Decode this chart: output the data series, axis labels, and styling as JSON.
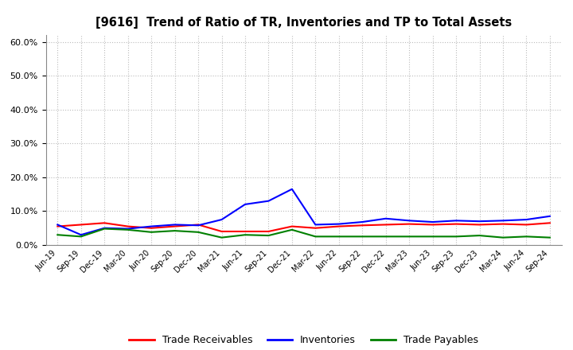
{
  "title": "[9616]  Trend of Ratio of TR, Inventories and TP to Total Assets",
  "labels": [
    "Jun-19",
    "Sep-19",
    "Dec-19",
    "Mar-20",
    "Jun-20",
    "Sep-20",
    "Dec-20",
    "Mar-21",
    "Jun-21",
    "Sep-21",
    "Dec-21",
    "Mar-22",
    "Jun-22",
    "Sep-22",
    "Dec-22",
    "Mar-23",
    "Jun-23",
    "Sep-23",
    "Dec-23",
    "Mar-24",
    "Jun-24",
    "Sep-24"
  ],
  "trade_receivables": [
    0.055,
    0.06,
    0.065,
    0.055,
    0.05,
    0.055,
    0.06,
    0.04,
    0.04,
    0.04,
    0.055,
    0.05,
    0.055,
    0.058,
    0.06,
    0.062,
    0.06,
    0.062,
    0.06,
    0.062,
    0.06,
    0.065
  ],
  "inventories": [
    0.06,
    0.03,
    0.05,
    0.048,
    0.055,
    0.06,
    0.058,
    0.075,
    0.12,
    0.13,
    0.165,
    0.06,
    0.062,
    0.068,
    0.078,
    0.072,
    0.068,
    0.072,
    0.07,
    0.072,
    0.075,
    0.085
  ],
  "trade_payables": [
    0.03,
    0.025,
    0.048,
    0.045,
    0.038,
    0.042,
    0.038,
    0.022,
    0.03,
    0.028,
    0.045,
    0.025,
    0.025,
    0.025,
    0.025,
    0.025,
    0.025,
    0.025,
    0.028,
    0.022,
    0.025,
    0.022
  ],
  "tr_color": "#ff0000",
  "inv_color": "#0000ff",
  "tp_color": "#008000",
  "ylim": [
    0.0,
    0.62
  ],
  "yticks": [
    0.0,
    0.1,
    0.2,
    0.3,
    0.4,
    0.5,
    0.6
  ],
  "legend_labels": [
    "Trade Receivables",
    "Inventories",
    "Trade Payables"
  ],
  "background_color": "#ffffff",
  "grid_color": "#bbbbbb"
}
